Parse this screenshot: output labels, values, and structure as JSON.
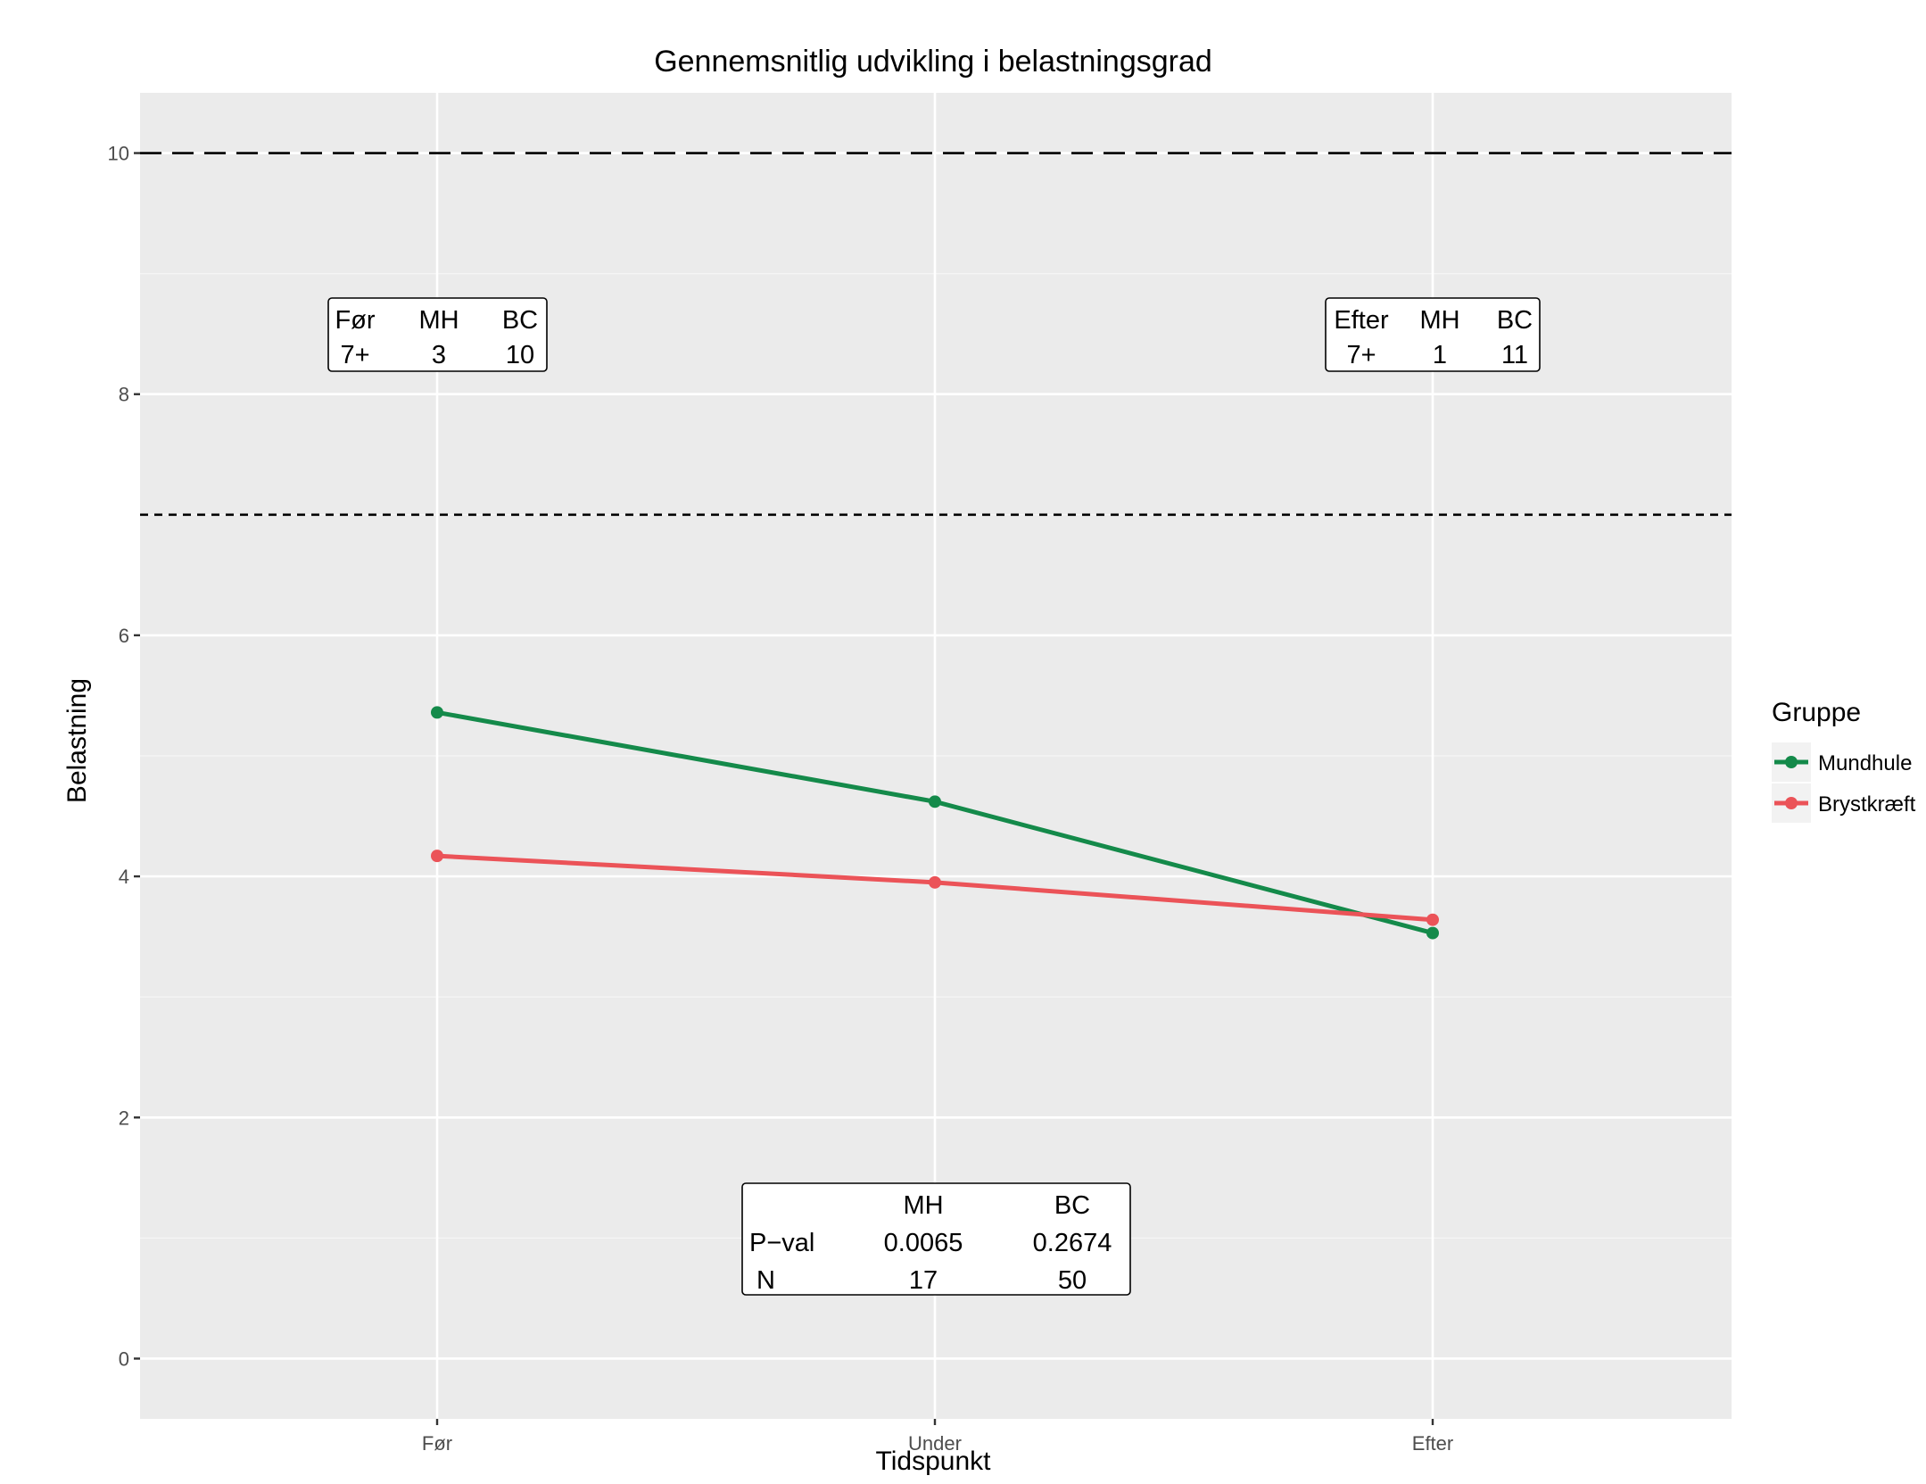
{
  "chart_data": {
    "type": "line",
    "title": "Gennemsnitlig udvikling i belastningsgrad",
    "xlabel": "Tidspunkt",
    "ylabel": "Belastning",
    "categories": [
      "Før",
      "Under",
      "Efter"
    ],
    "ylim": [
      -0.5,
      10.5
    ],
    "yticks": [
      0,
      2,
      4,
      6,
      8,
      10
    ],
    "grid": true,
    "legend": {
      "title": "Gruppe",
      "position": "right"
    },
    "series": [
      {
        "name": "Mundhule",
        "color": "#148a4a",
        "values": [
          5.36,
          4.62,
          3.53
        ]
      },
      {
        "name": "Brystkræft",
        "color": "#eb5358",
        "values": [
          4.17,
          3.95,
          3.64
        ]
      }
    ],
    "reference_lines": [
      {
        "y": 10,
        "style": "long-dash"
      },
      {
        "y": 7,
        "style": "short-dash"
      }
    ],
    "annotations": [
      {
        "id": "before",
        "rows": [
          [
            "Før",
            "MH",
            "BC"
          ],
          [
            "7+",
            "3",
            "10"
          ]
        ]
      },
      {
        "id": "after",
        "rows": [
          [
            "Efter",
            "MH",
            "BC"
          ],
          [
            "7+",
            "1",
            "11"
          ]
        ]
      },
      {
        "id": "pvals",
        "rows": [
          [
            "",
            "MH",
            "BC"
          ],
          [
            "P−val",
            "0.0065",
            "0.2674"
          ],
          [
            "N",
            "17",
            "50"
          ]
        ]
      }
    ]
  }
}
